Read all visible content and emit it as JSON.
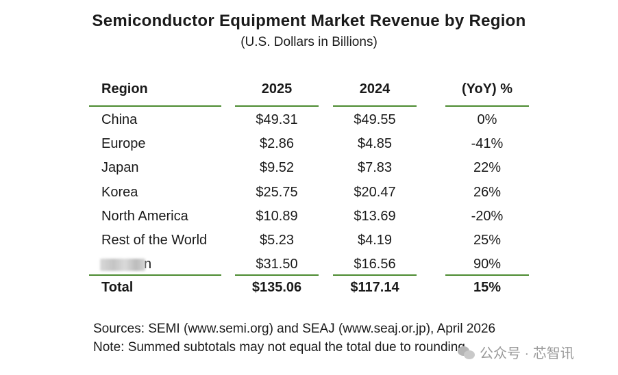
{
  "chart_data": {
    "type": "table",
    "title": "Semiconductor Equipment Market Revenue by Region",
    "subtitle": "(U.S. Dollars in Billions)",
    "columns": [
      "Region",
      "2025",
      "2024",
      "(YoY) %"
    ],
    "rows": [
      {
        "region": "China",
        "y2025": "$49.31",
        "y2024": "$49.55",
        "yoy": "0%"
      },
      {
        "region": "Europe",
        "y2025": "$2.86",
        "y2024": "$4.85",
        "yoy": "-41%"
      },
      {
        "region": "Japan",
        "y2025": "$9.52",
        "y2024": "$7.83",
        "yoy": "22%"
      },
      {
        "region": "Korea",
        "y2025": "$25.75",
        "y2024": "$20.47",
        "yoy": "26%"
      },
      {
        "region": "North America",
        "y2025": "$10.89",
        "y2024": "$13.69",
        "yoy": "-20%"
      },
      {
        "region": "Rest of the World",
        "y2025": "$5.23",
        "y2024": "$4.19",
        "yoy": "25%"
      },
      {
        "region": "n",
        "y2025": "$31.50",
        "y2024": "$16.56",
        "yoy": "90%"
      }
    ],
    "total": {
      "region": "Total",
      "y2025": "$135.06",
      "y2024": "$117.14",
      "yoy": "15%"
    },
    "rule_color": "#4a8a2f"
  },
  "notes": {
    "sources": "Sources: SEMI (www.semi.org) and SEAJ (www.seaj.or.jp), April 2026",
    "note": "Note: Summed subtotals may not equal the total due to rounding."
  },
  "watermark": {
    "icon": "wechat-icon",
    "text": "公众号 · 芯智讯"
  }
}
